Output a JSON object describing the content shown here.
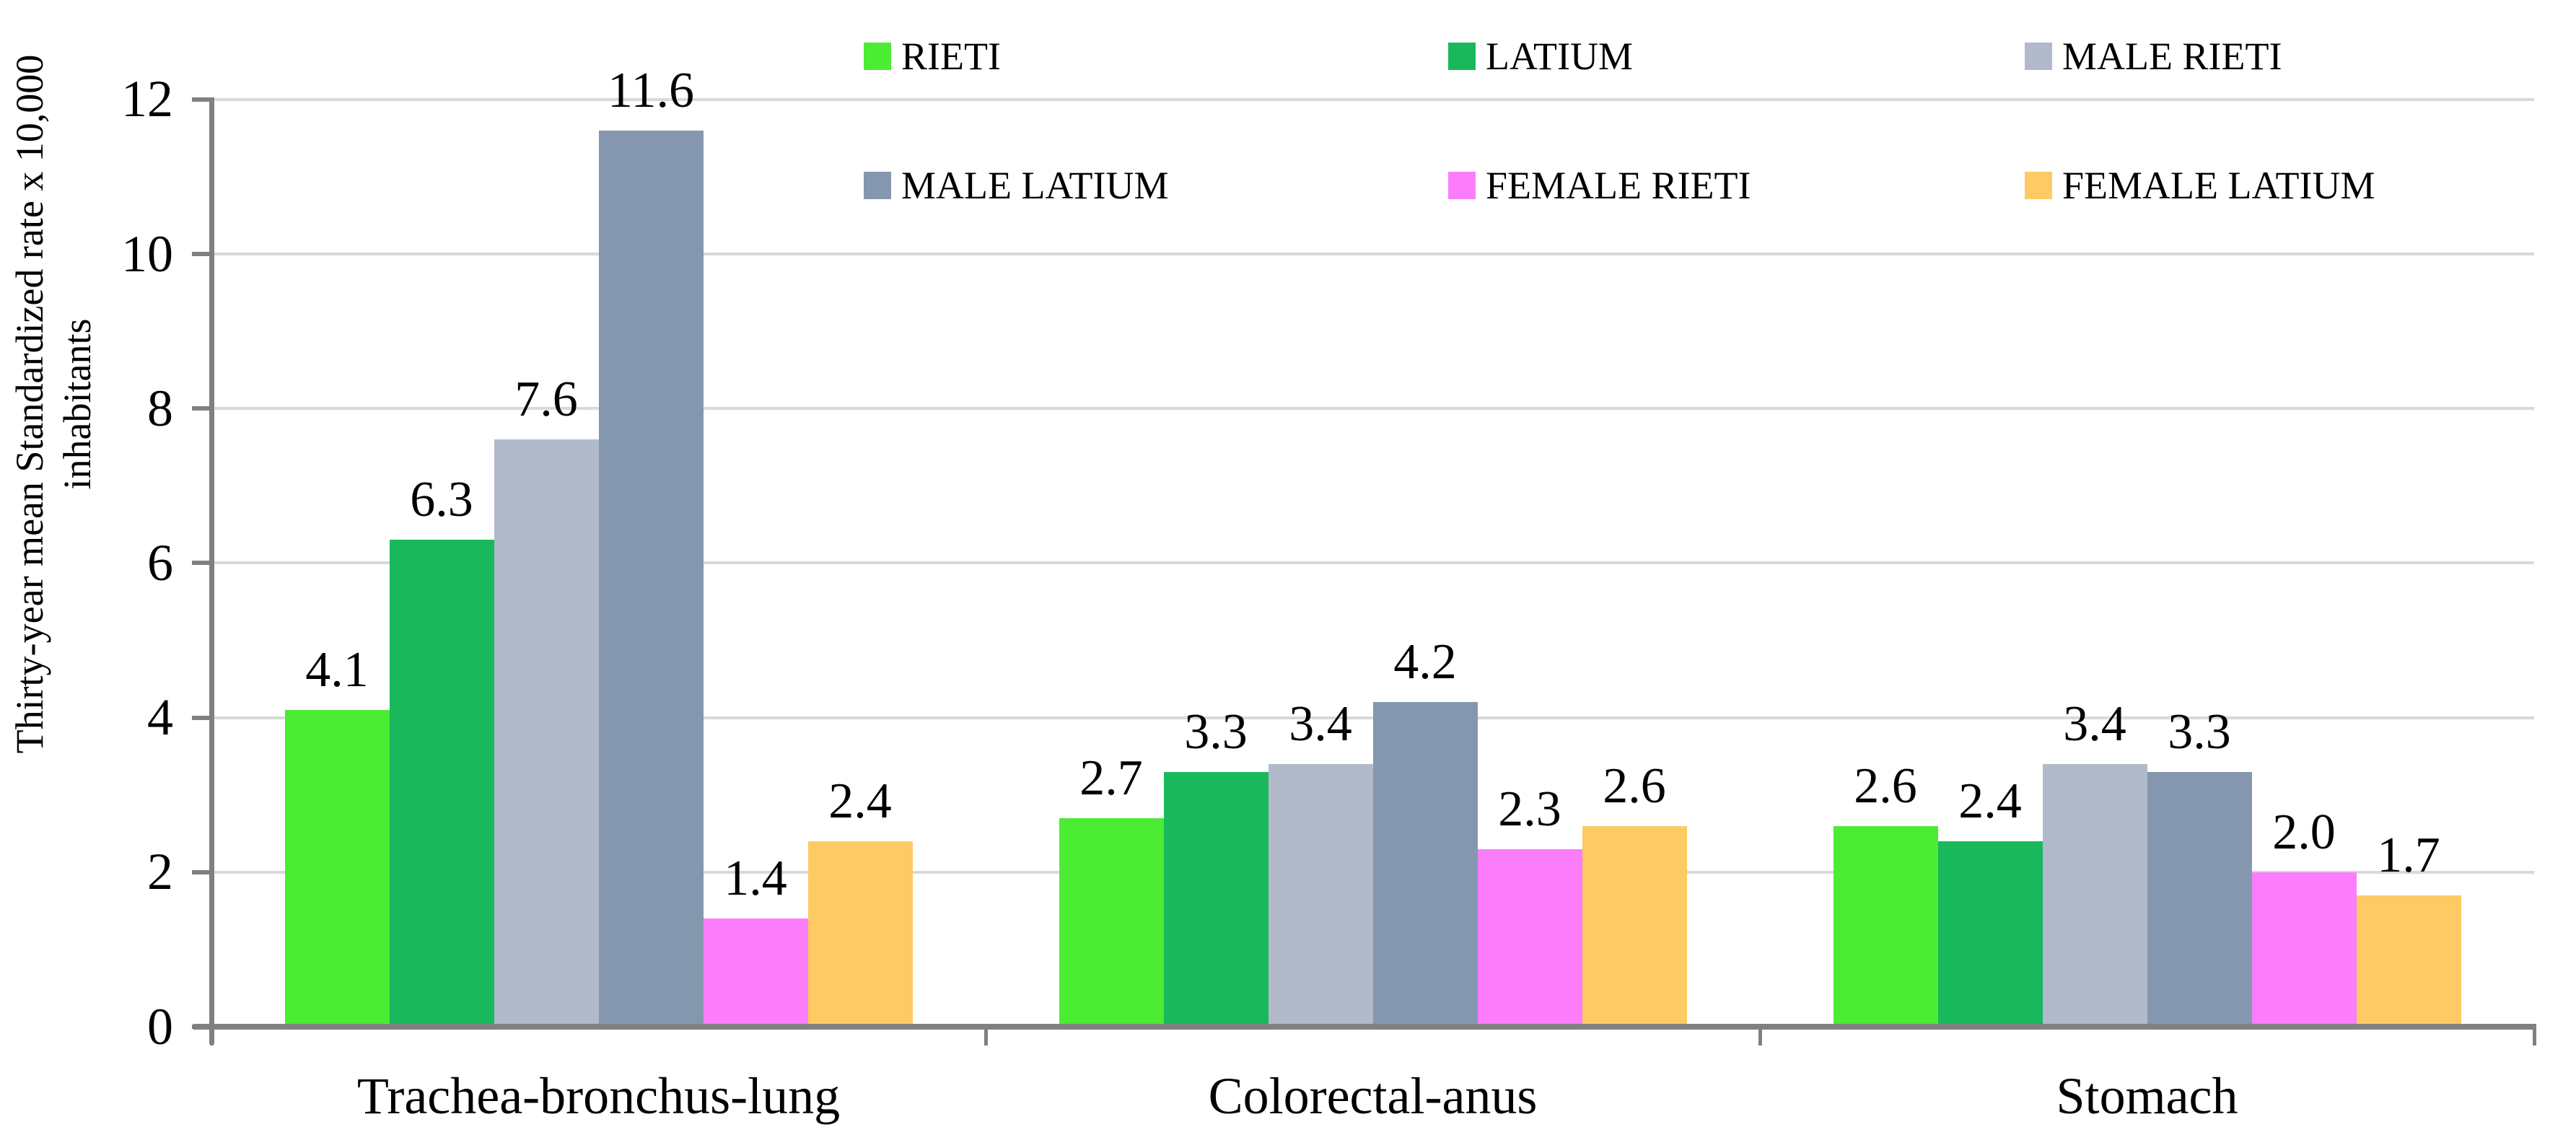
{
  "chart_data": {
    "type": "bar",
    "categories": [
      "Trachea-bronchus-lung",
      "Colorectal-anus",
      "Stomach"
    ],
    "series": [
      {
        "name": "RIETI",
        "color": "#4BEC33",
        "values": [
          4.1,
          2.7,
          2.6
        ]
      },
      {
        "name": "LATIUM",
        "color": "#19B85C",
        "values": [
          6.3,
          3.3,
          2.4
        ]
      },
      {
        "name": "MALE RIETI",
        "color": "#B0BACB",
        "values": [
          7.6,
          3.4,
          3.4
        ]
      },
      {
        "name": "MALE LATIUM",
        "color": "#8597AF",
        "values": [
          11.6,
          4.2,
          3.3
        ]
      },
      {
        "name": "FEMALE RIETI",
        "color": "#FB7DFB",
        "values": [
          1.4,
          2.3,
          2.0
        ]
      },
      {
        "name": "FEMALE LATIUM",
        "color": "#FDCA64",
        "values": [
          2.4,
          2.6,
          1.7
        ]
      }
    ],
    "ylabel_line1": "Thirty-year mean Standardized rate x 10,000",
    "ylabel_line2": "inhabitants",
    "xlabel": "",
    "title": "",
    "ylim": [
      0,
      12
    ],
    "y_ticks": [
      0,
      2,
      4,
      6,
      8,
      10,
      12
    ],
    "value_label_decimals": 1,
    "grid": "horizontal",
    "legend_position": "top-two-rows",
    "colors": {
      "gridline": "#D9D9D9",
      "axis": "#808080",
      "text": "#000000",
      "background": "#FFFFFF"
    }
  }
}
